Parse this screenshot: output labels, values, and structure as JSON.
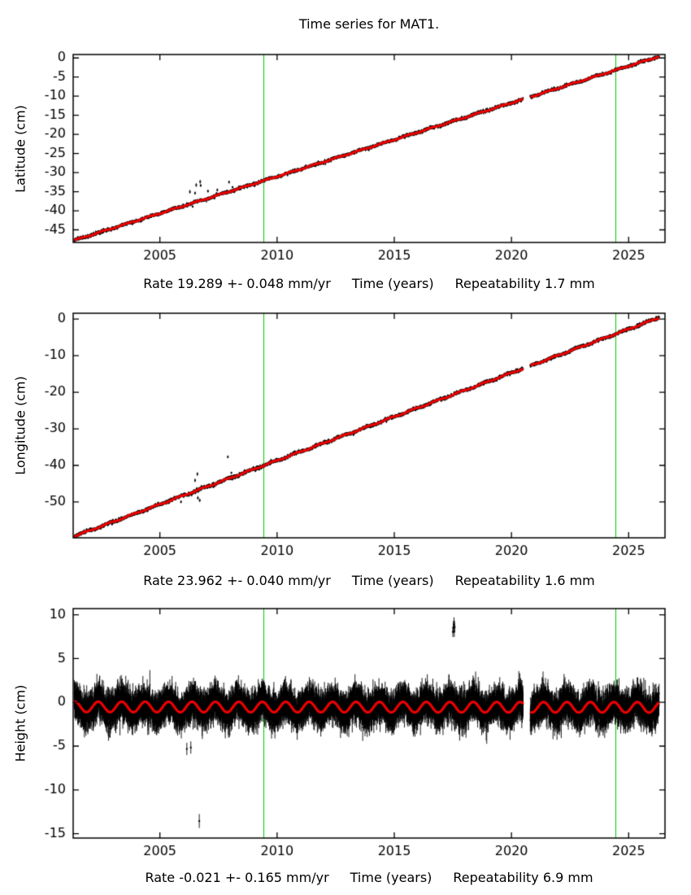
{
  "title": "Time series for MAT1.",
  "colors": {
    "background": "#ffffff",
    "data_points": "#000000",
    "fit_line": "#ee0000",
    "event_line": "#00c800",
    "axis": "#000000"
  },
  "chart_data": [
    {
      "type": "scatter",
      "name": "latitude",
      "ylabel": "Latitude (cm)",
      "xlabel": "Time (years)",
      "rate_label": "Rate 19.289 +- 0.048 mm/yr",
      "repeatability_label": "Repeatability 1.7 mm",
      "xlim": [
        2001.3,
        2026.55
      ],
      "ylim": [
        -48.3,
        0.9
      ],
      "xticks": [
        2005,
        2010,
        2015,
        2020,
        2025
      ],
      "yticks": [
        0,
        -5,
        -10,
        -15,
        -20,
        -25,
        -30,
        -35,
        -40,
        -45
      ],
      "data_start": 2001.35,
      "data_end": 2026.3,
      "sample_step_years": 0.0055,
      "trend": {
        "t_ref": 2026.3,
        "value_at_ref_cm": 0.4,
        "rate_cm_per_yr": 1.9289
      },
      "seasonal_amplitude_cm": 0.12,
      "seasonal_phase": 0.3,
      "noise_sigma_cm": 0.18,
      "error_bar_cm": 0.25,
      "data_gaps": [
        [
          2020.5,
          2020.8
        ]
      ],
      "event_lines_x": [
        2009.42,
        2024.45
      ],
      "outliers": [
        [
          2006.28,
          3.2,
          0.5
        ],
        [
          2006.5,
          2.3,
          0.4
        ],
        [
          2006.55,
          4.3,
          0.5
        ],
        [
          2006.72,
          4.9,
          0.5
        ],
        [
          2006.74,
          3.9,
          0.4
        ],
        [
          2007.05,
          2.0,
          0.4
        ],
        [
          2007.45,
          1.3,
          0.4
        ],
        [
          2007.95,
          2.6,
          0.4
        ],
        [
          2008.1,
          1.0,
          0.3
        ],
        [
          2006.4,
          -1.0,
          0.3
        ]
      ]
    },
    {
      "type": "scatter",
      "name": "longitude",
      "ylabel": "Longitude (cm)",
      "xlabel": "Time (years)",
      "rate_label": "Rate 23.962 +- 0.040 mm/yr",
      "repeatability_label": "Repeatability 1.6 mm",
      "xlim": [
        2001.3,
        2026.55
      ],
      "ylim": [
        -59.8,
        1.6
      ],
      "xticks": [
        2005,
        2010,
        2015,
        2020,
        2025
      ],
      "yticks": [
        0,
        -10,
        -20,
        -30,
        -40,
        -50
      ],
      "data_start": 2001.35,
      "data_end": 2026.3,
      "sample_step_years": 0.0055,
      "trend": {
        "t_ref": 2026.3,
        "value_at_ref_cm": 0.4,
        "rate_cm_per_yr": 2.3962
      },
      "seasonal_amplitude_cm": 0.15,
      "seasonal_phase": 0.55,
      "noise_sigma_cm": 0.2,
      "error_bar_cm": 0.28,
      "data_gaps": [
        [
          2020.5,
          2020.8
        ]
      ],
      "event_lines_x": [
        2009.42,
        2024.45
      ],
      "outliers": [
        [
          2005.9,
          -1.6,
          0.4
        ],
        [
          2006.5,
          3.0,
          0.5
        ],
        [
          2006.6,
          4.4,
          0.5
        ],
        [
          2006.62,
          -2.2,
          0.5
        ],
        [
          2006.7,
          -3.1,
          0.5
        ],
        [
          2007.9,
          5.9,
          0.4
        ],
        [
          2008.05,
          1.3,
          0.3
        ]
      ]
    },
    {
      "type": "scatter",
      "name": "height",
      "ylabel": "Height (cm)",
      "xlabel": "Time (years)",
      "rate_label": "Rate -0.021 +- 0.165 mm/yr",
      "repeatability_label": "Repeatability 6.9 mm",
      "xlim": [
        2001.3,
        2026.55
      ],
      "ylim": [
        -15.5,
        10.7
      ],
      "xticks": [
        2005,
        2010,
        2015,
        2020,
        2025
      ],
      "yticks": [
        10,
        5,
        0,
        -5,
        -10,
        -15
      ],
      "data_start": 2001.35,
      "data_end": 2026.3,
      "sample_step_years": 0.0055,
      "trend": {
        "t_ref": 2013.8,
        "value_at_ref_cm": -0.55,
        "rate_cm_per_yr": -0.0021
      },
      "seasonal_amplitude_cm": 0.6,
      "seasonal_phase": 0.12,
      "noise_sigma_cm": 0.7,
      "error_bar_cm": 1.3,
      "data_gaps": [
        [
          2020.5,
          2020.8
        ]
      ],
      "event_lines_x": [
        2009.42,
        2024.45
      ],
      "outliers": [
        [
          2017.5,
          8.2,
          0.6
        ],
        [
          2017.52,
          8.7,
          0.6
        ],
        [
          2017.54,
          9.1,
          0.5
        ],
        [
          2017.55,
          9.5,
          0.5
        ],
        [
          2017.56,
          8.4,
          0.6
        ],
        [
          2017.58,
          9.0,
          0.5
        ],
        [
          2006.68,
          -12.8,
          0.8
        ],
        [
          2006.15,
          -4.9,
          0.7
        ],
        [
          2006.32,
          -5.2,
          0.7
        ]
      ]
    }
  ]
}
